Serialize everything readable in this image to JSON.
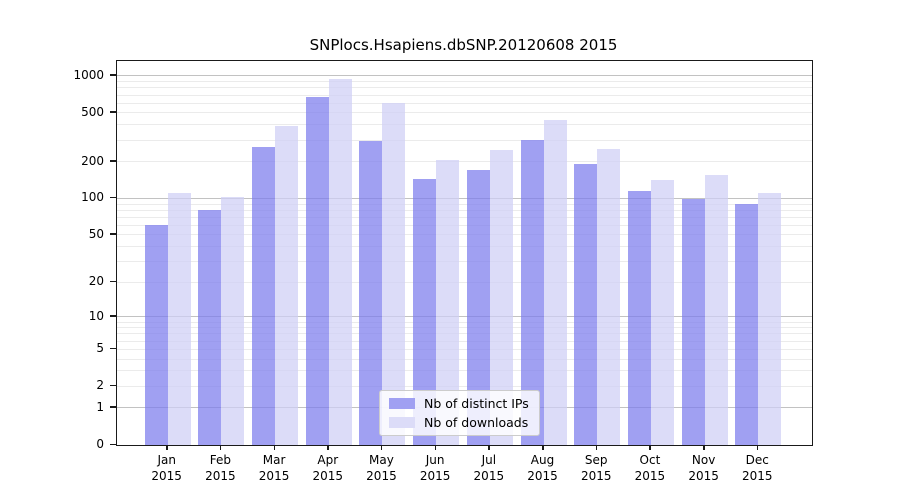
{
  "title": "SNPlocs.Hsapiens.dbSNP.20120608 2015",
  "colors": {
    "ips_bar": "#a0a0f2",
    "downloads_bar": "#dcdcf8",
    "grid_major": "#c2c2c2",
    "grid_minor": "#ebebeb",
    "frame": "#1a1a1a"
  },
  "legend": {
    "items": [
      {
        "label": "Nb of distinct IPs",
        "series": "ips"
      },
      {
        "label": "Nb of downloads",
        "series": "dls"
      }
    ]
  },
  "chart_data": {
    "type": "bar",
    "title": "SNPlocs.Hsapiens.dbSNP.20120608 2015",
    "categories": [
      "Jan",
      "Feb",
      "Mar",
      "Apr",
      "May",
      "Jun",
      "Jul",
      "Aug",
      "Sep",
      "Oct",
      "Nov",
      "Dec"
    ],
    "year_label": "2015",
    "series": [
      {
        "name": "Nb of distinct IPs",
        "values": [
          60,
          80,
          265,
          670,
          295,
          145,
          170,
          300,
          190,
          115,
          100,
          90
        ]
      },
      {
        "name": "Nb of downloads",
        "values": [
          112,
          102,
          390,
          940,
          600,
          207,
          250,
          435,
          255,
          143,
          157,
          112
        ]
      }
    ],
    "yscale": "log1p",
    "yticks": [
      0,
      1,
      2,
      5,
      10,
      20,
      50,
      100,
      200,
      500,
      1000
    ],
    "grid_major_values": [
      1,
      10,
      100,
      1000
    ],
    "ylim": [
      0,
      1324
    ],
    "grid": true,
    "legend_position": "lower center",
    "xlabel": "",
    "ylabel": ""
  }
}
